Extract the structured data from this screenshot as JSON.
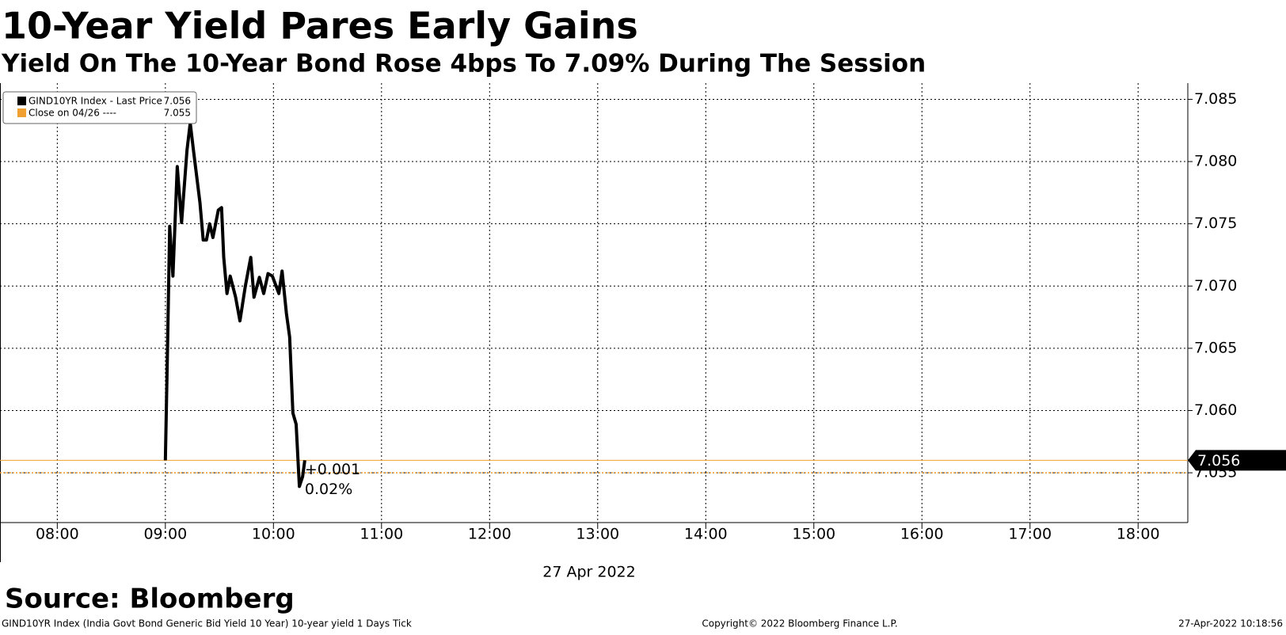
{
  "chart_data": {
    "type": "line",
    "title": "10-Year Yield Pares Early Gains",
    "subtitle": "Yield On The 10-Year Bond Rose 4bps To 7.09% During The Session",
    "x_label": "27 Apr 2022",
    "x": [
      9.0,
      9.02,
      9.04,
      9.07,
      9.11,
      9.15,
      9.2,
      9.23,
      9.26,
      9.32,
      9.35,
      9.38,
      9.41,
      9.44,
      9.49,
      9.52,
      9.54,
      9.57,
      9.6,
      9.65,
      9.69,
      9.74,
      9.79,
      9.82,
      9.87,
      9.91,
      9.95,
      9.99,
      10.05,
      10.08,
      10.12,
      10.15,
      10.18,
      10.21,
      10.24,
      10.27,
      10.29
    ],
    "series": [
      {
        "name": "GIND10YR Index - Last Price",
        "color": "#000000",
        "last": 7.056,
        "values": [
          7.056,
          7.065,
          7.0748,
          7.0708,
          7.0796,
          7.0751,
          7.0809,
          7.0831,
          7.0809,
          7.0767,
          7.0737,
          7.0737,
          7.075,
          7.0739,
          7.0761,
          7.0763,
          7.0723,
          7.0694,
          7.0708,
          7.0691,
          7.0672,
          7.07,
          7.0723,
          7.0691,
          7.0707,
          7.0694,
          7.071,
          7.0708,
          7.0694,
          7.0712,
          7.0678,
          7.0659,
          7.0598,
          7.0589,
          7.0539,
          7.0547,
          7.056
        ]
      }
    ],
    "reference": {
      "name": "Close on 04/26 ----",
      "value": 7.055,
      "color": "#f0a030"
    },
    "change_label": "+0.001",
    "change_pct_label": "0.02%",
    "xlim": [
      7.47,
      18.46
    ],
    "ylim": [
      7.051,
      7.0863
    ],
    "xticks": [
      {
        "value": 8,
        "label": "08:00"
      },
      {
        "value": 9,
        "label": "09:00"
      },
      {
        "value": 10,
        "label": "10:00"
      },
      {
        "value": 11,
        "label": "11:00"
      },
      {
        "value": 12,
        "label": "12:00"
      },
      {
        "value": 13,
        "label": "13:00"
      },
      {
        "value": 14,
        "label": "14:00"
      },
      {
        "value": 15,
        "label": "15:00"
      },
      {
        "value": 16,
        "label": "16:00"
      },
      {
        "value": 17,
        "label": "17:00"
      },
      {
        "value": 18,
        "label": "18:00"
      }
    ],
    "yticks": [
      7.055,
      {
        "value": 7.06,
        "label": "7.060"
      },
      7.065,
      {
        "value": 7.07,
        "label": "7.070"
      },
      7.075,
      {
        "value": 7.08,
        "label": "7.080"
      },
      7.085
    ],
    "grid": true,
    "source": "Source: Bloomberg",
    "footer_left": "GIND10YR Index (India Govt Bond Generic Bid Yield 10 Year) 10-year yield 1 Days  Tick",
    "footer_center": "Copyright© 2022 Bloomberg Finance L.P.",
    "footer_right": "27-Apr-2022 10:18:56"
  }
}
